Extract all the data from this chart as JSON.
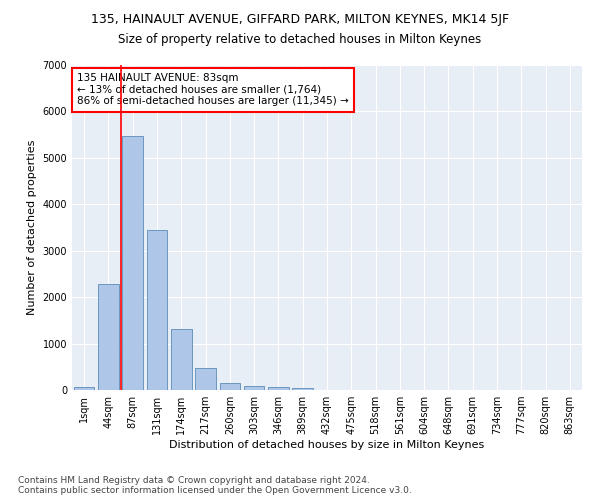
{
  "title1": "135, HAINAULT AVENUE, GIFFARD PARK, MILTON KEYNES, MK14 5JF",
  "title2": "Size of property relative to detached houses in Milton Keynes",
  "xlabel": "Distribution of detached houses by size in Milton Keynes",
  "ylabel": "Number of detached properties",
  "categories": [
    "1sqm",
    "44sqm",
    "87sqm",
    "131sqm",
    "174sqm",
    "217sqm",
    "260sqm",
    "303sqm",
    "346sqm",
    "389sqm",
    "432sqm",
    "475sqm",
    "518sqm",
    "561sqm",
    "604sqm",
    "648sqm",
    "691sqm",
    "734sqm",
    "777sqm",
    "820sqm",
    "863sqm"
  ],
  "values": [
    75,
    2290,
    5480,
    3450,
    1310,
    470,
    155,
    90,
    55,
    40,
    0,
    0,
    0,
    0,
    0,
    0,
    0,
    0,
    0,
    0,
    0
  ],
  "bar_color": "#aec6e8",
  "bar_edge_color": "#5b8db8",
  "background_color": "#e8eef6",
  "grid_color": "#ffffff",
  "vline_color": "red",
  "vline_x_pos": 1.5,
  "annotation_text": "135 HAINAULT AVENUE: 83sqm\n← 13% of detached houses are smaller (1,764)\n86% of semi-detached houses are larger (11,345) →",
  "annotation_box_color": "white",
  "annotation_box_edge": "red",
  "ylim": [
    0,
    7000
  ],
  "yticks": [
    0,
    1000,
    2000,
    3000,
    4000,
    5000,
    6000,
    7000
  ],
  "footnote": "Contains HM Land Registry data © Crown copyright and database right 2024.\nContains public sector information licensed under the Open Government Licence v3.0.",
  "title1_fontsize": 9,
  "title2_fontsize": 8.5,
  "xlabel_fontsize": 8,
  "ylabel_fontsize": 8,
  "tick_fontsize": 7,
  "annotation_fontsize": 7.5,
  "footnote_fontsize": 6.5
}
